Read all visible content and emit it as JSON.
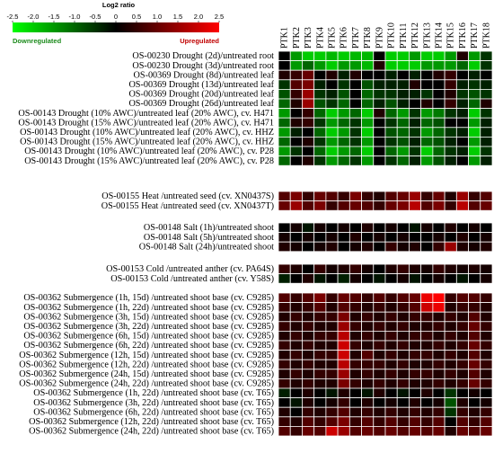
{
  "chart_data": {
    "type": "heatmap",
    "legend": {
      "title": "Log2 ratio",
      "ticks": [
        "-2.5",
        "-2.0",
        "-1.5",
        "-1.0",
        "-0.5",
        "0",
        "0.5",
        "1.0",
        "1.5",
        "2.0",
        "2.5"
      ],
      "min": -2.5,
      "max": 2.5,
      "down_label": "Downregulated",
      "up_label": "Upregulated",
      "colors": {
        "low": "#00ff00",
        "mid": "#000000",
        "high": "#ff0000"
      }
    },
    "columns": [
      "PTK1",
      "PTK2",
      "PTK3",
      "PTK4",
      "PTK5",
      "PTK6",
      "PTK7",
      "PTK8",
      "PTK9",
      "PTK10",
      "PTK11",
      "PTK12",
      "PTK13",
      "PTK14",
      "PTK15",
      "PTK16",
      "PTK17",
      "PTK18"
    ],
    "groups": [
      {
        "rows": [
          {
            "label": "OS-00230 Drought (2d)/untreated root",
            "values": [
              0,
              -1.5,
              -2,
              -2,
              -1.8,
              -2,
              -1.8,
              -1.8,
              0,
              -2,
              -2,
              -1.5,
              -2,
              -2,
              -1.5,
              0.3,
              -1.5,
              -0.5
            ]
          },
          {
            "label": "OS-00230 Drought (3d)/untreated root",
            "values": [
              0,
              -1.5,
              -1,
              -1.5,
              -2,
              -1.5,
              -1.5,
              -1.8,
              0.3,
              -2,
              -2,
              -2,
              -1.5,
              -1.5,
              -1.5,
              -1,
              -2,
              -0.5
            ]
          },
          {
            "label": "OS-00369 Drought (8d)/untreated leaf",
            "values": [
              0.3,
              0.5,
              1,
              0,
              0.3,
              -0.3,
              0.3,
              0,
              0,
              -0.3,
              0,
              -0.3,
              0,
              0.3,
              0.5,
              0,
              -0.3,
              0
            ]
          },
          {
            "label": "OS-00369 Drought (13d)/untreated leaf",
            "values": [
              -0.5,
              0.8,
              1.2,
              -0.3,
              0,
              -0.5,
              0,
              -0.8,
              -0.3,
              -0.3,
              -0.3,
              0.3,
              0,
              0,
              0.5,
              -0.3,
              -0.5,
              -0.3
            ]
          },
          {
            "label": "OS-00369 Drought (20d)/untreated leaf",
            "values": [
              -0.8,
              0.5,
              1.5,
              -0.5,
              -0.3,
              -0.8,
              0,
              -1,
              -0.5,
              -0.5,
              -0.3,
              -0.3,
              -0.5,
              0,
              0.3,
              -0.5,
              -0.8,
              -0.5
            ]
          },
          {
            "label": "OS-00369 Drought (26d)/untreated leaf",
            "values": [
              -1,
              0.3,
              1.5,
              -0.8,
              -0.5,
              -1,
              0,
              -1,
              -0.3,
              -0.8,
              -0.3,
              0,
              0.3,
              0,
              0.5,
              -0.3,
              -1,
              0.3
            ]
          },
          {
            "label": "OS-00143 Drought (10% AWC)/untreated leaf (20% AWC), cv. H471",
            "values": [
              -1.5,
              0,
              0.5,
              -1,
              -2,
              -1.5,
              -1,
              -2,
              0.3,
              -1,
              -1.5,
              -0.5,
              -1.5,
              -1.2,
              -0.5,
              -0.3,
              -2,
              -0.5
            ]
          },
          {
            "label": "OS-00143 Drought (15% AWC)/untreated leaf (20% AWC), cv. H471",
            "values": [
              -1,
              0.3,
              0.5,
              -0.5,
              -1.5,
              -1,
              -0.5,
              -1.5,
              0,
              -0.5,
              -1,
              -0.3,
              -1,
              -0.8,
              0,
              0,
              -1.5,
              -0.3
            ]
          },
          {
            "label": "OS-00143 Drought (10% AWC)/untreated leaf (20% AWC), cv. HHZ",
            "values": [
              -1.5,
              -0.3,
              0,
              -1,
              -2,
              -1.5,
              -0.5,
              -2,
              0,
              -0.8,
              -1,
              -0.5,
              -1.5,
              -1,
              -0.5,
              -0.3,
              -2,
              -0.3
            ]
          },
          {
            "label": "OS-00143 Drought (15% AWC)/untreated leaf (20% AWC), cv. HHZ",
            "values": [
              -1,
              0,
              0.3,
              -0.5,
              -1.5,
              -1,
              -0.5,
              -1.5,
              0,
              -0.5,
              -0.8,
              -0.3,
              -1,
              -0.8,
              -0.3,
              0,
              -1.5,
              -0.3
            ]
          },
          {
            "label": "OS-00143 Drought (10% AWC)/untreated leaf (20% AWC), cv. P28",
            "values": [
              -1.5,
              -0.5,
              0,
              -1,
              -2,
              -1.5,
              -1,
              -2,
              0,
              -1,
              -1.5,
              -0.5,
              -2,
              -1,
              -0.5,
              -0.3,
              -2,
              -0.5
            ]
          },
          {
            "label": "OS-00143 Drought (15% AWC)/untreated leaf (20% AWC), cv. P28",
            "values": [
              -1,
              0,
              0.3,
              -0.5,
              -1.5,
              -1,
              -0.5,
              -1.5,
              0,
              -0.5,
              -1,
              -0.3,
              -1.5,
              -0.8,
              -0.3,
              0,
              -1.5,
              -0.3
            ]
          }
        ]
      },
      {
        "rows": [
          {
            "label": "OS-00155 Heat /untreated seed (cv. XN0437S)",
            "values": [
              0.8,
              1.2,
              0.5,
              1,
              0.8,
              0.5,
              1.2,
              0.5,
              0.3,
              0.8,
              1,
              1.5,
              0.5,
              1,
              0.3,
              1.5,
              0.5,
              0.8
            ]
          },
          {
            "label": "OS-00155 Heat /untreated seed (cv. XN0437T)",
            "values": [
              1,
              1.5,
              0.8,
              1.2,
              0.5,
              0.8,
              1,
              0.8,
              0.5,
              1,
              1.2,
              1.8,
              0.8,
              1.2,
              0.5,
              1.8,
              0.8,
              1
            ]
          }
        ]
      },
      {
        "rows": [
          {
            "label": "OS-00148 Salt (1h)/untreated shoot",
            "values": [
              0,
              0.2,
              -0.2,
              0.2,
              0,
              0.2,
              0,
              0.3,
              0,
              0.2,
              0,
              -0.2,
              0.2,
              0,
              0.3,
              0,
              0.2,
              0
            ]
          },
          {
            "label": "OS-00148 Salt (5h)/untreated shoot",
            "values": [
              0.2,
              0,
              0.2,
              0,
              0.2,
              0,
              0.3,
              0,
              0.2,
              0,
              0.2,
              0,
              0,
              0.2,
              0,
              0.3,
              0,
              0.2
            ]
          },
          {
            "label": "OS-00148 Salt (24h)/untreated shoot",
            "values": [
              0.3,
              0.2,
              0,
              0.2,
              0.3,
              0,
              0.2,
              0.3,
              0,
              0.5,
              0.2,
              0.3,
              0,
              0.5,
              1.5,
              0.3,
              0.2,
              0.3
            ]
          }
        ]
      },
      {
        "rows": [
          {
            "label": "OS-00153 Cold /untreated anther (cv. PA64S)",
            "values": [
              0.5,
              0.3,
              0,
              0.5,
              0.2,
              0.3,
              0.5,
              0.2,
              0,
              0.3,
              0.5,
              0.3,
              0.2,
              0.5,
              0.3,
              0.2,
              0.3,
              0.2
            ]
          },
          {
            "label": "OS-00153 Cold /untreated anther (cv. Y58S)",
            "values": [
              -0.3,
              0,
              0.3,
              -0.2,
              0,
              -0.3,
              0.2,
              0,
              -0.2,
              0,
              0.2,
              -0.2,
              0,
              0.2,
              0,
              -0.2,
              0,
              0.2
            ]
          }
        ]
      },
      {
        "rows": [
          {
            "label": "OS-00362 Submergence (1h, 15d) /untreated shoot base (cv. C9285)",
            "values": [
              0.8,
              0.5,
              0.8,
              1.2,
              0.5,
              1,
              0.8,
              0.5,
              0.8,
              0.5,
              0.8,
              1,
              2.3,
              2.5,
              0.5,
              0.8,
              0.8,
              0.5
            ]
          },
          {
            "label": "OS-00362 Submergence (1h, 22d) /untreated shoot base (cv. C9285)",
            "values": [
              0.5,
              0.3,
              0.5,
              0.8,
              0.3,
              0.8,
              0.5,
              0.3,
              0.5,
              0.3,
              0.5,
              0.8,
              2,
              2.3,
              0.3,
              0.5,
              0.5,
              0.3
            ]
          },
          {
            "label": "OS-00362 Submergence (3h, 15d) /untreated shoot base (cv. C9285)",
            "values": [
              0.3,
              0.5,
              0.3,
              0.5,
              0.5,
              1.2,
              0.3,
              0.5,
              0.3,
              0.5,
              0.3,
              0.5,
              0.5,
              0.3,
              0.5,
              0.3,
              0.8,
              0.3
            ]
          },
          {
            "label": "OS-00362 Submergence (3h, 22d) /untreated shoot base (cv. C9285)",
            "values": [
              0.5,
              0.3,
              0.5,
              0.3,
              0.3,
              1.5,
              0.5,
              0.3,
              0.5,
              0.3,
              0.5,
              0.3,
              0.3,
              0.5,
              0.3,
              0.5,
              1,
              0.5
            ]
          },
          {
            "label": "OS-00362 Submergence (6h, 15d) /untreated shoot base (cv. C9285)",
            "values": [
              0.3,
              0.5,
              0.3,
              0.5,
              0.5,
              1.8,
              0.3,
              0.5,
              0.3,
              0.5,
              0.3,
              0.5,
              0.5,
              0.3,
              0.5,
              0.3,
              0.8,
              0.3
            ]
          },
          {
            "label": "OS-00362 Submergence (6h, 22d) /untreated shoot base (cv. C9285)",
            "values": [
              0.5,
              0.3,
              0.5,
              0.3,
              0.3,
              2,
              0.5,
              0.3,
              0.5,
              0.3,
              0.5,
              0.3,
              0.3,
              0.5,
              0.3,
              0.5,
              1,
              0.5
            ]
          },
          {
            "label": "OS-00362 Submergence (12h, 15d) /untreated shoot base (cv. C9285)",
            "values": [
              0.3,
              0.5,
              0.3,
              0.5,
              0.5,
              2,
              0.3,
              0.8,
              0.3,
              0.5,
              0.3,
              0.5,
              0.5,
              0.3,
              0.5,
              0.3,
              0.8,
              0.3
            ]
          },
          {
            "label": "OS-00362 Submergence (12h, 22d) /untreated shoot base (cv. C9285)",
            "values": [
              0.5,
              0.3,
              0.5,
              0.3,
              0.3,
              1.8,
              0.5,
              0.5,
              0.5,
              0.3,
              0.5,
              0.3,
              0.3,
              0.5,
              0.3,
              0.5,
              1,
              0.5
            ]
          },
          {
            "label": "OS-00362 Submergence (24h, 15d) /untreated shoot base (cv. C9285)",
            "values": [
              0.3,
              0.5,
              0.3,
              0.5,
              0.5,
              1.5,
              0.3,
              0.5,
              0.3,
              0.5,
              0.3,
              0.5,
              0.5,
              0.3,
              0.5,
              0.3,
              0.8,
              0.3
            ]
          },
          {
            "label": "OS-00362 Submergence (24h, 22d) /untreated shoot base (cv. C9285)",
            "values": [
              0.5,
              0.3,
              0.5,
              0.3,
              0.3,
              1.2,
              0.5,
              0.3,
              0.5,
              0.3,
              0.5,
              0.3,
              0.3,
              0.5,
              0.3,
              0.5,
              1,
              0.5
            ]
          },
          {
            "label": "OS-00362 Submergence (1h, 22d) /untreated shoot base (cv. T65)",
            "values": [
              -0.3,
              0,
              0.3,
              0,
              -0.2,
              0.3,
              0,
              -0.2,
              0.3,
              0,
              -0.2,
              0,
              0.3,
              0,
              -0.5,
              0,
              0.2,
              0
            ]
          },
          {
            "label": "OS-00362 Submergence (3h, 22d) /untreated shoot base (cv. T65)",
            "values": [
              0,
              -0.2,
              0.3,
              0,
              0.2,
              0.5,
              0,
              0.3,
              0,
              0.2,
              0,
              0.3,
              0,
              0.2,
              -0.8,
              0.3,
              0,
              0.2
            ]
          },
          {
            "label": "OS-00362 Submergence (6h, 22d) /untreated shoot base (cv. T65)",
            "values": [
              0.3,
              0,
              0.5,
              0.3,
              0.5,
              0.8,
              0.3,
              0.5,
              0.3,
              0.5,
              0.3,
              0.5,
              0.3,
              0.5,
              -0.5,
              0.5,
              0.3,
              0.5
            ]
          },
          {
            "label": "OS-00362 Submergence (12h, 22d) /untreated shoot base (cv. T65)",
            "values": [
              0.5,
              0.3,
              0.8,
              0.5,
              0.8,
              1.2,
              0.5,
              0.8,
              0.5,
              0.8,
              0.5,
              0.8,
              0.5,
              0.8,
              0,
              0.8,
              0.5,
              0.8
            ]
          },
          {
            "label": "OS-00362 Submergence (24h, 22d) /untreated shoot base (cv. T65)",
            "values": [
              0.8,
              0.5,
              1,
              0.8,
              2,
              1.5,
              0.8,
              1,
              0.8,
              1,
              0.8,
              1,
              0.8,
              1,
              0.3,
              1,
              0.8,
              1
            ]
          }
        ]
      }
    ]
  }
}
